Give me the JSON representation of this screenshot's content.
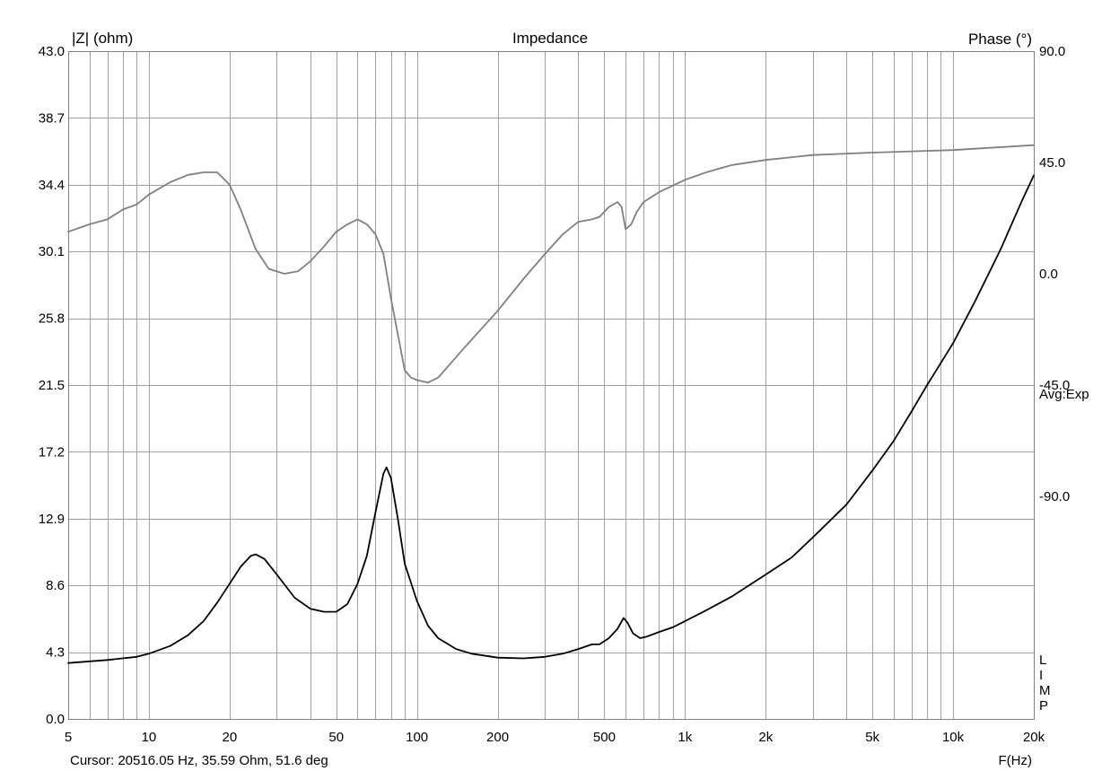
{
  "chart_data": {
    "type": "line",
    "title": "Impedance",
    "left_axis_label": "|Z| (ohm)",
    "right_axis_label": "Phase (°)",
    "x_label": "F(Hz)",
    "x_scale": "log",
    "xlim": [
      5,
      20000
    ],
    "ylim_left": [
      0,
      43
    ],
    "ylim_right": [
      -180,
      90
    ],
    "x_ticks": [
      {
        "value": 5,
        "label": "5"
      },
      {
        "value": 10,
        "label": "10"
      },
      {
        "value": 20,
        "label": "20"
      },
      {
        "value": 50,
        "label": "50"
      },
      {
        "value": 100,
        "label": "100"
      },
      {
        "value": 200,
        "label": "200"
      },
      {
        "value": 500,
        "label": "500"
      },
      {
        "value": 1000,
        "label": "1k"
      },
      {
        "value": 2000,
        "label": "2k"
      },
      {
        "value": 5000,
        "label": "5k"
      },
      {
        "value": 10000,
        "label": "10k"
      },
      {
        "value": 20000,
        "label": "20k"
      }
    ],
    "left_ticks": [
      "0.0",
      "4.3",
      "8.6",
      "12.9",
      "17.2",
      "21.5",
      "25.8",
      "30.1",
      "34.4",
      "38.7",
      "43.0"
    ],
    "right_ticks": [
      {
        "value": 90,
        "label": "90.0"
      },
      {
        "value": 45,
        "label": "45.0"
      },
      {
        "value": 0,
        "label": "0.0"
      },
      {
        "value": -45,
        "label": "-45.0"
      },
      {
        "value": -90,
        "label": "-90.0"
      }
    ],
    "grid": true,
    "averaging_label": "Avg:Exp",
    "side_letters": [
      "L",
      "I",
      "M",
      "P"
    ],
    "cursor_text": "Cursor: 20516.05 Hz, 35.59 Ohm, 51.6 deg",
    "series": [
      {
        "axis": "left",
        "color": "#000000",
        "points": [
          [
            5,
            3.6
          ],
          [
            7,
            3.8
          ],
          [
            9,
            4.0
          ],
          [
            10,
            4.2
          ],
          [
            12,
            4.7
          ],
          [
            14,
            5.4
          ],
          [
            16,
            6.3
          ],
          [
            18,
            7.5
          ],
          [
            20,
            8.7
          ],
          [
            22,
            9.8
          ],
          [
            24,
            10.5
          ],
          [
            25,
            10.6
          ],
          [
            27,
            10.3
          ],
          [
            30,
            9.3
          ],
          [
            35,
            7.8
          ],
          [
            40,
            7.1
          ],
          [
            45,
            6.9
          ],
          [
            50,
            6.9
          ],
          [
            55,
            7.4
          ],
          [
            60,
            8.7
          ],
          [
            65,
            10.5
          ],
          [
            70,
            13.3
          ],
          [
            75,
            15.8
          ],
          [
            77,
            16.2
          ],
          [
            80,
            15.5
          ],
          [
            85,
            12.8
          ],
          [
            90,
            10.0
          ],
          [
            100,
            7.6
          ],
          [
            110,
            6.0
          ],
          [
            120,
            5.2
          ],
          [
            140,
            4.5
          ],
          [
            160,
            4.2
          ],
          [
            200,
            3.95
          ],
          [
            250,
            3.9
          ],
          [
            300,
            4.0
          ],
          [
            350,
            4.2
          ],
          [
            400,
            4.5
          ],
          [
            450,
            4.8
          ],
          [
            480,
            4.8
          ],
          [
            520,
            5.2
          ],
          [
            560,
            5.8
          ],
          [
            590,
            6.5
          ],
          [
            610,
            6.2
          ],
          [
            640,
            5.5
          ],
          [
            680,
            5.2
          ],
          [
            720,
            5.3
          ],
          [
            800,
            5.6
          ],
          [
            900,
            5.9
          ],
          [
            1000,
            6.3
          ],
          [
            1200,
            7.0
          ],
          [
            1500,
            7.9
          ],
          [
            2000,
            9.3
          ],
          [
            2500,
            10.4
          ],
          [
            3000,
            11.7
          ],
          [
            4000,
            13.8
          ],
          [
            5000,
            16.0
          ],
          [
            6000,
            17.9
          ],
          [
            7000,
            19.8
          ],
          [
            8000,
            21.5
          ],
          [
            10000,
            24.2
          ],
          [
            12000,
            26.8
          ],
          [
            15000,
            30.2
          ],
          [
            18000,
            33.3
          ],
          [
            20000,
            35.0
          ]
        ]
      },
      {
        "axis": "right",
        "color": "#808080",
        "points": [
          [
            5,
            17
          ],
          [
            6,
            20
          ],
          [
            7,
            22
          ],
          [
            8,
            26
          ],
          [
            9,
            28
          ],
          [
            10,
            32
          ],
          [
            12,
            37
          ],
          [
            14,
            40
          ],
          [
            16,
            41
          ],
          [
            18,
            41
          ],
          [
            20,
            36
          ],
          [
            22,
            26
          ],
          [
            25,
            10
          ],
          [
            28,
            2
          ],
          [
            32,
            0
          ],
          [
            36,
            1
          ],
          [
            40,
            5
          ],
          [
            45,
            11
          ],
          [
            50,
            17
          ],
          [
            55,
            20
          ],
          [
            60,
            22
          ],
          [
            65,
            20
          ],
          [
            70,
            16
          ],
          [
            75,
            8
          ],
          [
            80,
            -10
          ],
          [
            85,
            -25
          ],
          [
            90,
            -39
          ],
          [
            95,
            -42
          ],
          [
            100,
            -43
          ],
          [
            110,
            -44
          ],
          [
            120,
            -42
          ],
          [
            150,
            -30
          ],
          [
            200,
            -15
          ],
          [
            250,
            -2
          ],
          [
            300,
            8
          ],
          [
            350,
            16
          ],
          [
            400,
            21
          ],
          [
            450,
            22
          ],
          [
            480,
            23
          ],
          [
            520,
            27
          ],
          [
            560,
            29
          ],
          [
            580,
            27
          ],
          [
            600,
            18
          ],
          [
            630,
            20
          ],
          [
            660,
            25
          ],
          [
            700,
            29
          ],
          [
            800,
            33
          ],
          [
            1000,
            38
          ],
          [
            1200,
            41
          ],
          [
            1500,
            44
          ],
          [
            2000,
            46
          ],
          [
            3000,
            48
          ],
          [
            5000,
            49
          ],
          [
            10000,
            50
          ],
          [
            20000,
            52
          ]
        ]
      }
    ]
  }
}
